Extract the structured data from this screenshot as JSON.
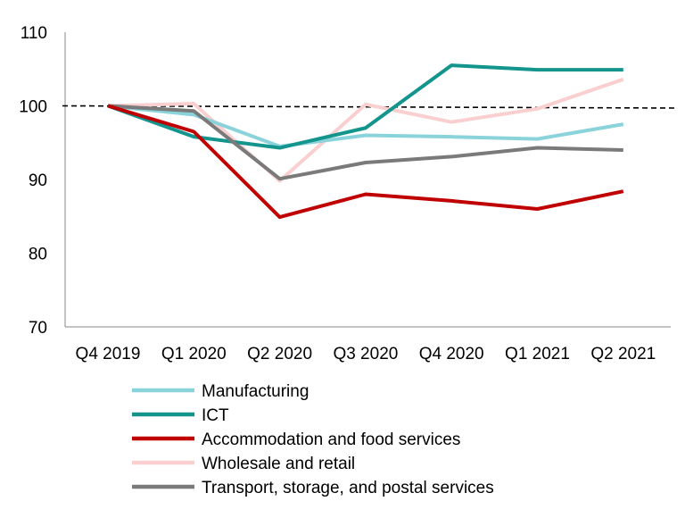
{
  "chart_data": {
    "type": "line",
    "title": "",
    "xlabel": "",
    "ylabel": "",
    "categories": [
      "Q4 2019",
      "Q1 2020",
      "Q2 2020",
      "Q3 2020",
      "Q4 2020",
      "Q1 2021",
      "Q2 2021"
    ],
    "ylim": [
      70,
      110
    ],
    "yticks": [
      70,
      80,
      90,
      100,
      110
    ],
    "grid": false,
    "reference_line": {
      "value": 100,
      "style": "dashed",
      "color": "#000000"
    },
    "legend_position": "bottom",
    "series": [
      {
        "name": "Manufacturing",
        "color": "#8AD3DB",
        "values": [
          100,
          98.8,
          94.5,
          96.0,
          95.8,
          95.5,
          97.5
        ]
      },
      {
        "name": "ICT",
        "color": "#13958D",
        "values": [
          100,
          95.8,
          94.3,
          97.0,
          105.5,
          104.9,
          104.9
        ]
      },
      {
        "name": "Accommodation and food services",
        "color": "#C00000",
        "values": [
          100,
          96.5,
          84.9,
          88.0,
          87.1,
          86.0,
          88.4
        ]
      },
      {
        "name": "Wholesale and retail",
        "color": "#F9CFD0",
        "values": [
          100,
          100.3,
          89.8,
          100.2,
          97.8,
          99.6,
          103.6
        ]
      },
      {
        "name": "Transport, storage, and postal services",
        "color": "#7A7A7A",
        "values": [
          100,
          99.3,
          90.1,
          92.3,
          93.1,
          94.3,
          94.0
        ]
      }
    ]
  }
}
